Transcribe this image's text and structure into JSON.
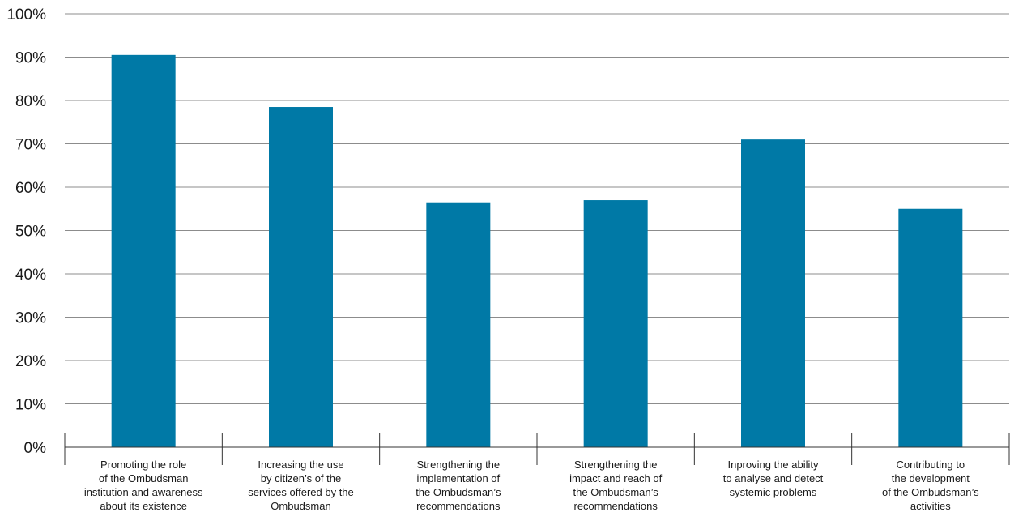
{
  "chart_data": {
    "type": "bar",
    "title": "",
    "xlabel": "",
    "ylabel": "",
    "ylim": [
      0,
      100
    ],
    "y_ticks": [
      "0%",
      "10%",
      "20%",
      "30%",
      "40%",
      "50%",
      "60%",
      "70%",
      "80%",
      "90%",
      "100%"
    ],
    "y_tick_values": [
      0,
      10,
      20,
      30,
      40,
      50,
      60,
      70,
      80,
      90,
      100
    ],
    "grid": true,
    "legend": "none",
    "bar_color": "#0079a6",
    "grid_color": "#8c8c8c",
    "categories": [
      [
        "Promoting the role",
        "of the Ombudsman",
        "institution and awareness",
        "about its existence"
      ],
      [
        "Increasing the use",
        "by citizen’s of the",
        "services offered by the",
        "Ombudsman"
      ],
      [
        "Strengthening the",
        "implementation of",
        "the Ombudsman’s",
        "recommendations"
      ],
      [
        "Strengthening the",
        "impact and reach of",
        "the Ombudsman’s",
        "recommendations"
      ],
      [
        "Inproving the ability",
        "to analyse and detect",
        "systemic problems"
      ],
      [
        "Contributing to",
        "the development",
        "of the Ombudsman’s",
        "activities"
      ]
    ],
    "values": [
      90.5,
      78.5,
      56.5,
      57,
      71,
      55
    ]
  }
}
